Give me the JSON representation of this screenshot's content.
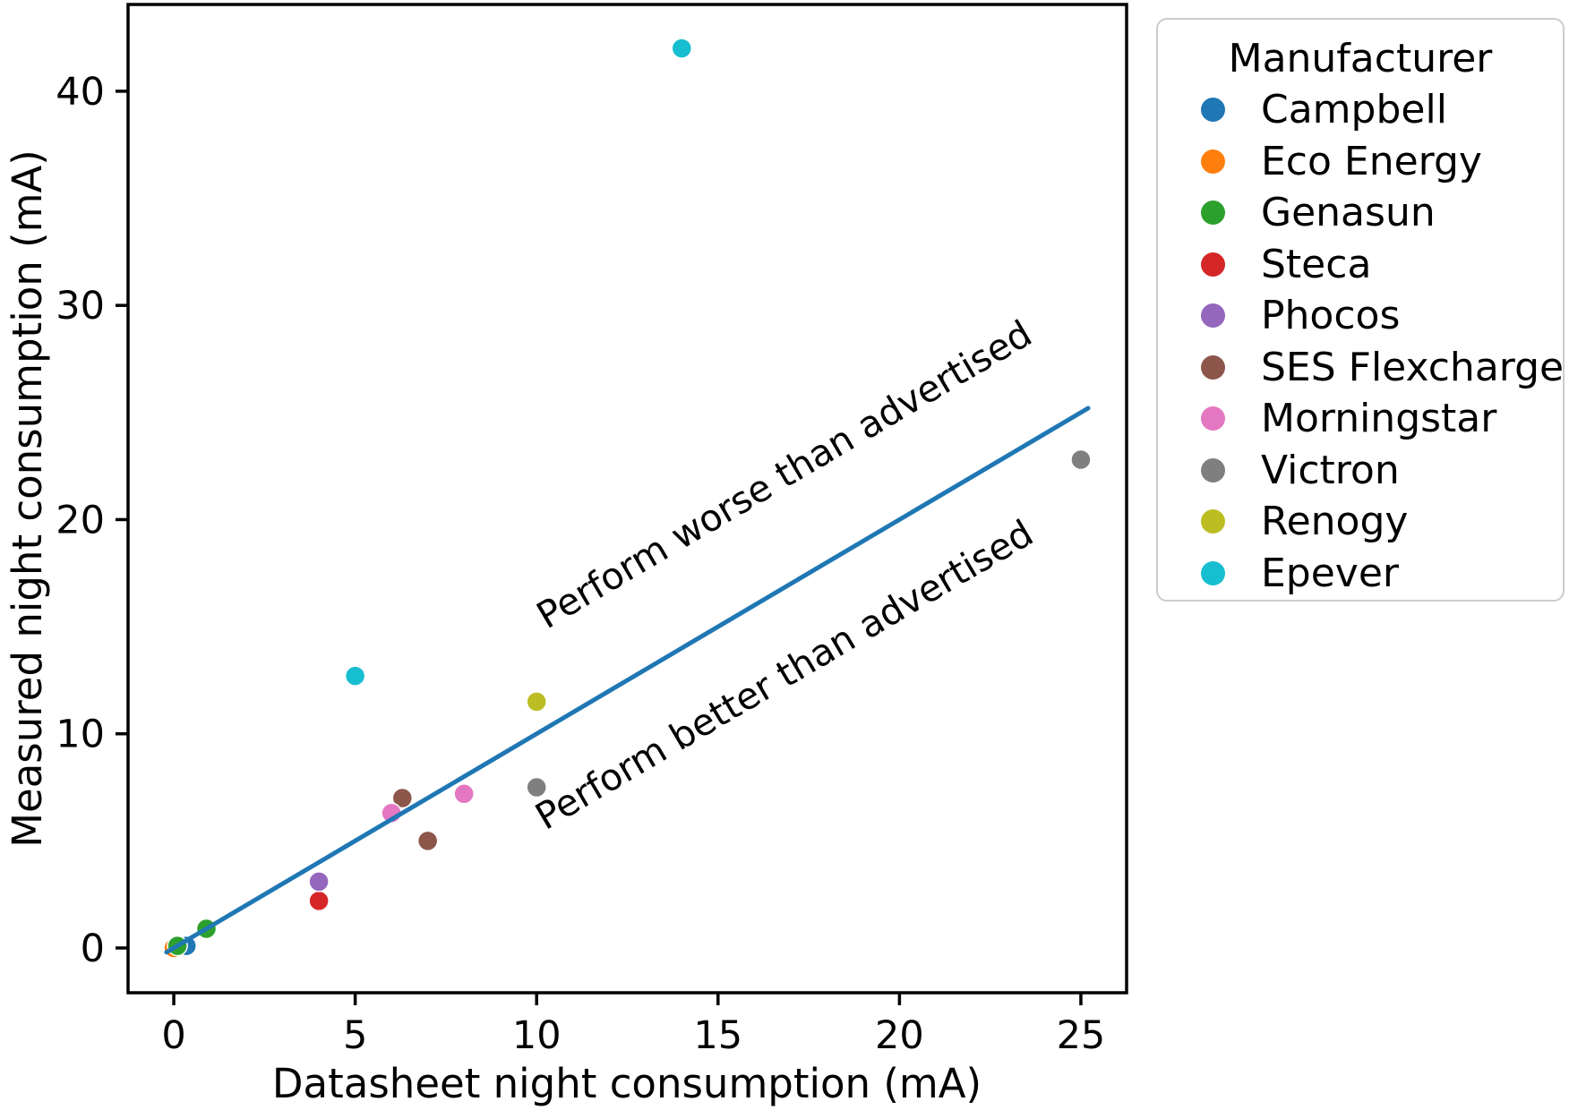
{
  "chart_data": {
    "type": "scatter",
    "xlabel": "Datasheet night consumption (mA)",
    "ylabel": "Measured night consumption (mA)",
    "xlim": [
      -1.26,
      26.26
    ],
    "ylim": [
      -2.09,
      44.05
    ],
    "x_ticks": [
      0,
      5,
      10,
      15,
      20,
      25
    ],
    "y_ticks": [
      0,
      10,
      20,
      30,
      40
    ],
    "grid": false,
    "legend_title": "Manufacturer",
    "legend_position": "outside-right-top",
    "marker_edge_color": "#ffffff",
    "series": [
      {
        "name": "Campbell",
        "color": "#1f77b4",
        "points": [
          [
            0.35,
            0.1
          ]
        ]
      },
      {
        "name": "Eco Energy",
        "color": "#ff7f0e",
        "points": [
          [
            0.0,
            0.0
          ]
        ]
      },
      {
        "name": "Genasun",
        "color": "#2ca02c",
        "points": [
          [
            0.1,
            0.1
          ],
          [
            0.9,
            0.9
          ]
        ]
      },
      {
        "name": "Steca",
        "color": "#d62728",
        "points": [
          [
            4.0,
            2.2
          ]
        ]
      },
      {
        "name": "Phocos",
        "color": "#9467bd",
        "points": [
          [
            4.0,
            3.1
          ]
        ]
      },
      {
        "name": "SES Flexcharge",
        "color": "#8c564b",
        "points": [
          [
            6.3,
            7.0
          ],
          [
            7.0,
            5.0
          ]
        ]
      },
      {
        "name": "Morningstar",
        "color": "#e377c2",
        "points": [
          [
            6.0,
            6.3
          ],
          [
            8.0,
            7.2
          ]
        ]
      },
      {
        "name": "Victron",
        "color": "#7f7f7f",
        "points": [
          [
            10.0,
            7.5
          ],
          [
            25.0,
            22.8
          ]
        ]
      },
      {
        "name": "Renogy",
        "color": "#bcbd22",
        "points": [
          [
            10.0,
            11.5
          ]
        ]
      },
      {
        "name": "Epever",
        "color": "#17becf",
        "points": [
          [
            5.0,
            12.7
          ],
          [
            14.0,
            42.0
          ]
        ]
      }
    ],
    "reference_line": {
      "color": "#1f77b4",
      "from": [
        -0.2,
        -0.2
      ],
      "to": [
        25.2,
        25.2
      ]
    },
    "annotations": [
      {
        "text": "Perform worse than advertised",
        "x": 17.0,
        "y": 21.6,
        "rotation_deg": -30.6
      },
      {
        "text": "Perform better than advertised",
        "x": 17.0,
        "y": 12.25,
        "rotation_deg": -30.6
      }
    ]
  }
}
